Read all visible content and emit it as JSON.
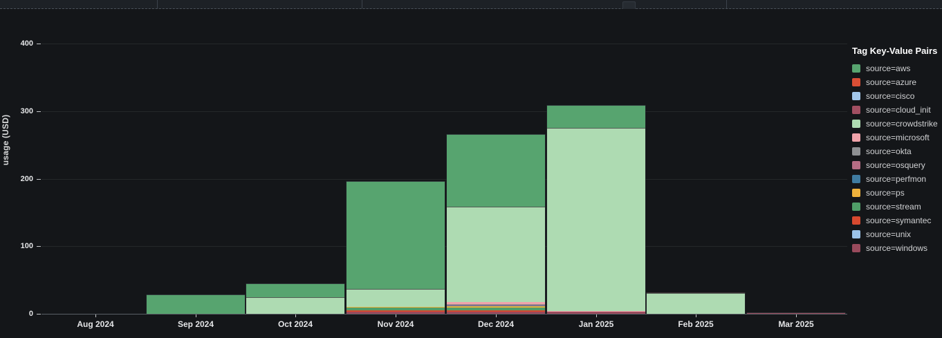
{
  "panel": {
    "background": "#141619",
    "top_strip_color": "#1d2126"
  },
  "chart_data": {
    "type": "bar",
    "stacked": true,
    "title": "",
    "legend_title": "Tag Key-Value Pairs",
    "ylabel": "usage (USD)",
    "xlabel": "",
    "ylim": [
      0,
      400
    ],
    "y_ticks": [
      0,
      100,
      200,
      300,
      400
    ],
    "grid": "horizontal",
    "legend_position": "right",
    "categories": [
      "Aug 2024",
      "Sep 2024",
      "Oct 2024",
      "Nov 2024",
      "Dec 2024",
      "Jan 2025",
      "Feb 2025",
      "Mar 2025"
    ],
    "series": [
      {
        "name": "source=aws",
        "color": "#57a46f",
        "values": [
          0,
          29,
          20.5,
          160,
          108,
          34,
          0,
          0
        ]
      },
      {
        "name": "source=azure",
        "color": "#d94e35",
        "values": [
          0,
          0,
          0,
          0,
          0,
          0,
          1.5,
          0
        ]
      },
      {
        "name": "source=cisco",
        "color": "#a3c7ea",
        "values": [
          0,
          0,
          0,
          0,
          0,
          0,
          0,
          0
        ]
      },
      {
        "name": "source=cloud_init",
        "color": "#a14f62",
        "values": [
          0,
          0,
          0,
          0,
          0,
          0,
          0,
          0
        ]
      },
      {
        "name": "source=crowdstrike",
        "color": "#aedbb2",
        "values": [
          0,
          0,
          25,
          26,
          141,
          271,
          30,
          0
        ]
      },
      {
        "name": "source=microsoft",
        "color": "#f0a3aa",
        "values": [
          0,
          0,
          0,
          0,
          3,
          1.5,
          0,
          0
        ]
      },
      {
        "name": "source=okta",
        "color": "#8e9093",
        "values": [
          0,
          0,
          0,
          0,
          1,
          0,
          0,
          0
        ]
      },
      {
        "name": "source=osquery",
        "color": "#b56d84",
        "values": [
          0,
          0,
          0,
          0,
          1,
          0,
          0,
          0
        ]
      },
      {
        "name": "source=perfmon",
        "color": "#3f7ba0",
        "values": [
          0,
          0,
          0,
          0,
          1,
          0,
          0,
          0
        ]
      },
      {
        "name": "source=ps",
        "color": "#eeb13c",
        "values": [
          0,
          0,
          0,
          1.5,
          2,
          0,
          0,
          0
        ]
      },
      {
        "name": "source=stream",
        "color": "#4f9e68",
        "values": [
          0,
          0,
          0,
          4,
          4,
          0,
          0,
          0
        ]
      },
      {
        "name": "source=symantec",
        "color": "#d7492f",
        "values": [
          0,
          0,
          0,
          2,
          2,
          0,
          0,
          0
        ]
      },
      {
        "name": "source=unix",
        "color": "#9cc3e8",
        "values": [
          0,
          0,
          0,
          0,
          0,
          0,
          0,
          0
        ]
      },
      {
        "name": "source=windows",
        "color": "#994a5c",
        "values": [
          0,
          0,
          0,
          3,
          3,
          2.5,
          0,
          2
        ]
      }
    ]
  }
}
